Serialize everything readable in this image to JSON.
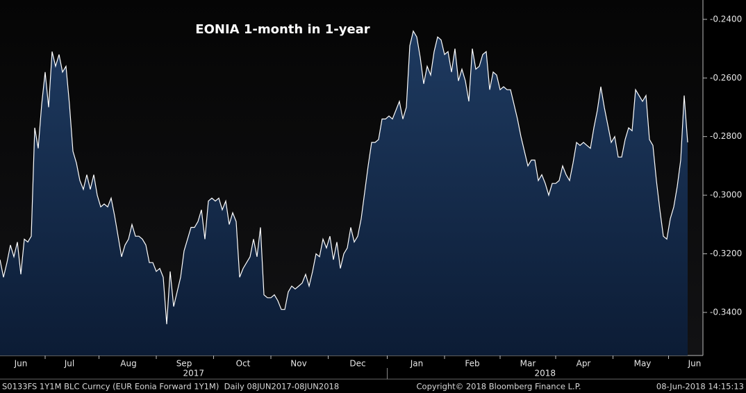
{
  "chart_data": {
    "type": "area",
    "title": "EONIA 1-month in 1-year",
    "categories": [
      null,
      null,
      null,
      null,
      null,
      null,
      "Jun",
      null,
      null,
      null,
      null,
      null,
      null,
      null,
      null,
      null,
      null,
      null,
      null,
      null,
      "Jul",
      null,
      null,
      null,
      null,
      null,
      null,
      null,
      null,
      null,
      null,
      null,
      null,
      null,
      null,
      null,
      null,
      "Aug",
      null,
      null,
      null,
      null,
      null,
      null,
      null,
      null,
      null,
      null,
      null,
      null,
      null,
      null,
      null,
      "Sep",
      null,
      null,
      null,
      null,
      null,
      null,
      null,
      null,
      null,
      null,
      null,
      null,
      null,
      null,
      null,
      null,
      "Oct",
      null,
      null,
      null,
      null,
      null,
      null,
      null,
      null,
      null,
      null,
      null,
      null,
      null,
      null,
      null,
      "Nov",
      null,
      null,
      null,
      null,
      null,
      null,
      null,
      null,
      null,
      null,
      null,
      null,
      null,
      null,
      null,
      null,
      "Dec",
      null,
      null,
      null,
      null,
      null,
      null,
      null,
      null,
      null,
      null,
      null,
      null,
      null,
      null,
      null,
      null,
      "Jan",
      null,
      null,
      null,
      null,
      null,
      null,
      null,
      null,
      null,
      null,
      null,
      null,
      null,
      null,
      null,
      "Feb",
      null,
      null,
      null,
      null,
      null,
      null,
      null,
      null,
      null,
      null,
      null,
      null,
      null,
      null,
      null,
      "Mar",
      null,
      null,
      null,
      null,
      null,
      null,
      null,
      null,
      null,
      null,
      null,
      null,
      null,
      null,
      null,
      "Apr",
      null,
      null,
      null,
      null,
      null,
      null,
      null,
      null,
      null,
      null,
      null,
      null,
      null,
      null,
      null,
      null,
      "May",
      null,
      null,
      null,
      null,
      null,
      null,
      null,
      null,
      null,
      null,
      null,
      null,
      null,
      null,
      "Jun"
    ],
    "year_labels": [
      "2017",
      "2018"
    ],
    "values": [
      -0.322,
      -0.328,
      -0.323,
      -0.317,
      -0.321,
      -0.316,
      -0.327,
      -0.315,
      -0.316,
      -0.314,
      -0.277,
      -0.284,
      -0.269,
      -0.258,
      -0.27,
      -0.251,
      -0.256,
      -0.252,
      -0.258,
      -0.256,
      -0.269,
      -0.285,
      -0.289,
      -0.295,
      -0.298,
      -0.293,
      -0.298,
      -0.293,
      -0.3,
      -0.304,
      -0.303,
      -0.304,
      -0.301,
      -0.307,
      -0.314,
      -0.321,
      -0.317,
      -0.315,
      -0.31,
      -0.314,
      -0.314,
      -0.315,
      -0.317,
      -0.323,
      -0.323,
      -0.326,
      -0.325,
      -0.328,
      -0.344,
      -0.326,
      -0.338,
      -0.333,
      -0.328,
      -0.319,
      -0.315,
      -0.311,
      -0.311,
      -0.309,
      -0.305,
      -0.315,
      -0.302,
      -0.301,
      -0.302,
      -0.301,
      -0.305,
      -0.302,
      -0.31,
      -0.306,
      -0.309,
      -0.328,
      -0.325,
      -0.323,
      -0.321,
      -0.315,
      -0.321,
      -0.311,
      -0.334,
      -0.335,
      -0.335,
      -0.334,
      -0.336,
      -0.339,
      -0.339,
      -0.333,
      -0.331,
      -0.332,
      -0.331,
      -0.33,
      -0.327,
      -0.331,
      -0.326,
      -0.32,
      -0.321,
      -0.315,
      -0.318,
      -0.314,
      -0.322,
      -0.316,
      -0.325,
      -0.32,
      -0.318,
      -0.311,
      -0.316,
      -0.314,
      -0.308,
      -0.299,
      -0.29,
      -0.282,
      -0.282,
      -0.281,
      -0.274,
      -0.274,
      -0.273,
      -0.274,
      -0.271,
      -0.268,
      -0.274,
      -0.27,
      -0.249,
      -0.244,
      -0.246,
      -0.253,
      -0.262,
      -0.256,
      -0.259,
      -0.251,
      -0.246,
      -0.247,
      -0.252,
      -0.251,
      -0.258,
      -0.25,
      -0.261,
      -0.257,
      -0.261,
      -0.268,
      -0.25,
      -0.257,
      -0.256,
      -0.252,
      -0.251,
      -0.264,
      -0.258,
      -0.259,
      -0.264,
      -0.263,
      -0.264,
      -0.264,
      -0.269,
      -0.274,
      -0.28,
      -0.285,
      -0.29,
      -0.288,
      -0.288,
      -0.295,
      -0.293,
      -0.296,
      -0.3,
      -0.296,
      -0.296,
      -0.295,
      -0.29,
      -0.293,
      -0.295,
      -0.289,
      -0.282,
      -0.283,
      -0.282,
      -0.283,
      -0.284,
      -0.277,
      -0.271,
      -0.263,
      -0.27,
      -0.276,
      -0.282,
      -0.28,
      -0.287,
      -0.287,
      -0.281,
      -0.277,
      -0.278,
      -0.264,
      -0.266,
      -0.268,
      -0.266,
      -0.281,
      -0.283,
      -0.295,
      -0.305,
      -0.314,
      -0.315,
      -0.308,
      -0.304,
      -0.297,
      -0.288,
      -0.266,
      -0.282,
      null,
      null
    ],
    "ylim": [
      -0.3547,
      -0.2334
    ],
    "yticks": [
      {
        "value": -0.24,
        "label": "-0.2400"
      },
      {
        "value": -0.26,
        "label": "-0.2600"
      },
      {
        "value": -0.28,
        "label": "-0.2800"
      },
      {
        "value": -0.3,
        "label": "-0.3000"
      },
      {
        "value": -0.32,
        "label": "-0.3200"
      },
      {
        "value": -0.34,
        "label": "-0.3400"
      }
    ],
    "line_color": "#ffffff",
    "fill_color": "#13294a",
    "source": "S0133FS 1Y1M BLC Curncy (EUR Eonia Forward 1Y1M)  Daily 08JUN2017-08JUN2018",
    "copyright": "Copyright© 2018 Bloomberg Finance L.P.",
    "timestamp": "08-Jun-2018 14:15:13"
  }
}
